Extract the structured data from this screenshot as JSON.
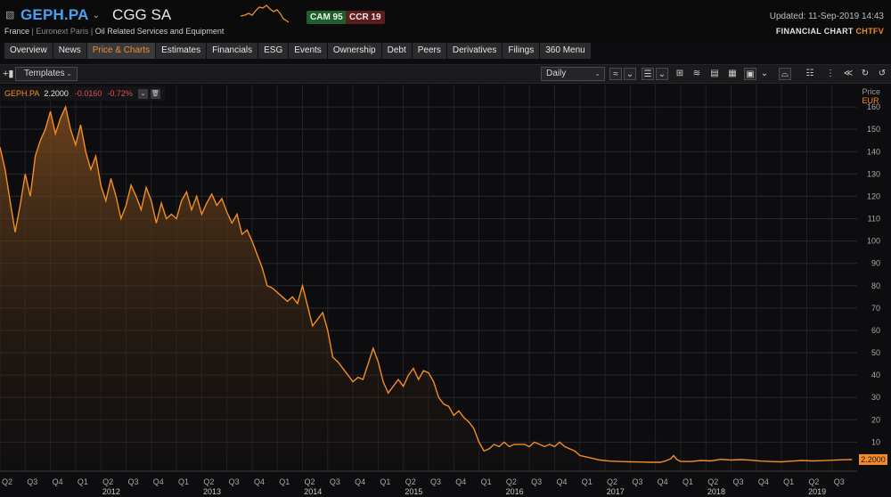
{
  "header": {
    "ric": "GEPH.PA",
    "company": "CGG SA",
    "country": "France",
    "exchange": "Euronext Paris",
    "sector": "Oil Related Services and Equipment",
    "cam_label": "CAM 95",
    "ccr_label": "CCR 19",
    "updated": "Updated: 11-Sep-2019 14:43",
    "chart_title": "FINANCIAL CHART",
    "chart_code": "CHTFV",
    "colors": {
      "ric": "#4c9ff0",
      "accent": "#f28c28",
      "cam_bg": "#1f5f2e",
      "ccr_bg": "#5a1e1e"
    }
  },
  "tabs": [
    {
      "label": "Overview",
      "active": false
    },
    {
      "label": "News",
      "active": false
    },
    {
      "label": "Price & Charts",
      "active": true
    },
    {
      "label": "Estimates",
      "active": false
    },
    {
      "label": "Financials",
      "active": false
    },
    {
      "label": "ESG",
      "active": false
    },
    {
      "label": "Events",
      "active": false
    },
    {
      "label": "Ownership",
      "active": false
    },
    {
      "label": "Debt",
      "active": false
    },
    {
      "label": "Peers",
      "active": false
    },
    {
      "label": "Derivatives",
      "active": false
    },
    {
      "label": "Filings",
      "active": false
    },
    {
      "label": "360 Menu",
      "active": false
    }
  ],
  "toolbar": {
    "templates_label": "Templates",
    "interval_label": "Daily",
    "icons": [
      "add-icon",
      "templates-dropdown",
      "interval-dropdown",
      "line-style-icon",
      "chevron-down-icon",
      "list-icon",
      "chevron-down-icon",
      "compare-icon",
      "wave-icon",
      "screen-icon",
      "save-icon",
      "export-icon",
      "chevron-down-icon",
      "chart-type-icon",
      "grid-icon",
      "layout-icon",
      "axis-icon",
      "refresh-icon",
      "history-icon"
    ]
  },
  "legend": {
    "name": "GEPH.PA",
    "price": "2.2000",
    "change": "-0.0160",
    "change_pct": "-0.72%"
  },
  "axis": {
    "price_label": "Price",
    "currency": "EUR",
    "last_label": "2.2000"
  },
  "chart_data": {
    "type": "area",
    "title": "",
    "series": [
      {
        "name": "GEPH.PA",
        "color": "#f28c28"
      }
    ],
    "y_ticks": [
      10,
      20,
      30,
      40,
      50,
      60,
      70,
      80,
      90,
      100,
      110,
      120,
      130,
      140,
      150,
      160
    ],
    "ylim": [
      -3,
      170
    ],
    "xlim": [
      2011.25,
      2019.75
    ],
    "x_quarters": [
      {
        "label": "Q2",
        "t": 2011.25
      },
      {
        "label": "Q3",
        "t": 2011.5
      },
      {
        "label": "Q4",
        "t": 2011.75
      },
      {
        "label": "Q1",
        "t": 2012.0
      },
      {
        "label": "Q2",
        "t": 2012.25
      },
      {
        "label": "Q3",
        "t": 2012.5
      },
      {
        "label": "Q4",
        "t": 2012.75
      },
      {
        "label": "Q1",
        "t": 2013.0
      },
      {
        "label": "Q2",
        "t": 2013.25
      },
      {
        "label": "Q3",
        "t": 2013.5
      },
      {
        "label": "Q4",
        "t": 2013.75
      },
      {
        "label": "Q1",
        "t": 2014.0
      },
      {
        "label": "Q2",
        "t": 2014.25
      },
      {
        "label": "Q3",
        "t": 2014.5
      },
      {
        "label": "Q4",
        "t": 2014.75
      },
      {
        "label": "Q1",
        "t": 2015.0
      },
      {
        "label": "Q2",
        "t": 2015.25
      },
      {
        "label": "Q3",
        "t": 2015.5
      },
      {
        "label": "Q4",
        "t": 2015.75
      },
      {
        "label": "Q1",
        "t": 2016.0
      },
      {
        "label": "Q2",
        "t": 2016.25
      },
      {
        "label": "Q3",
        "t": 2016.5
      },
      {
        "label": "Q4",
        "t": 2016.75
      },
      {
        "label": "Q1",
        "t": 2017.0
      },
      {
        "label": "Q2",
        "t": 2017.25
      },
      {
        "label": "Q3",
        "t": 2017.5
      },
      {
        "label": "Q4",
        "t": 2017.75
      },
      {
        "label": "Q1",
        "t": 2018.0
      },
      {
        "label": "Q2",
        "t": 2018.25
      },
      {
        "label": "Q3",
        "t": 2018.5
      },
      {
        "label": "Q4",
        "t": 2018.75
      },
      {
        "label": "Q1",
        "t": 2019.0
      },
      {
        "label": "Q2",
        "t": 2019.25
      },
      {
        "label": "Q3",
        "t": 2019.5
      }
    ],
    "x_years": [
      {
        "label": "2012",
        "t": 2012.0
      },
      {
        "label": "2013",
        "t": 2013.0
      },
      {
        "label": "2014",
        "t": 2014.0
      },
      {
        "label": "2015",
        "t": 2015.0
      },
      {
        "label": "2016",
        "t": 2016.0
      },
      {
        "label": "2017",
        "t": 2017.0
      },
      {
        "label": "2018",
        "t": 2018.0
      },
      {
        "label": "2019",
        "t": 2019.0
      }
    ],
    "points": [
      [
        2011.25,
        142
      ],
      [
        2011.3,
        132
      ],
      [
        2011.35,
        118
      ],
      [
        2011.4,
        104
      ],
      [
        2011.45,
        116
      ],
      [
        2011.5,
        130
      ],
      [
        2011.55,
        120
      ],
      [
        2011.6,
        138
      ],
      [
        2011.65,
        145
      ],
      [
        2011.7,
        150
      ],
      [
        2011.75,
        158
      ],
      [
        2011.8,
        148
      ],
      [
        2011.85,
        155
      ],
      [
        2011.9,
        160
      ],
      [
        2011.95,
        150
      ],
      [
        2012.0,
        143
      ],
      [
        2012.05,
        152
      ],
      [
        2012.1,
        140
      ],
      [
        2012.15,
        132
      ],
      [
        2012.2,
        138
      ],
      [
        2012.25,
        125
      ],
      [
        2012.3,
        118
      ],
      [
        2012.35,
        128
      ],
      [
        2012.4,
        120
      ],
      [
        2012.45,
        110
      ],
      [
        2012.5,
        116
      ],
      [
        2012.55,
        125
      ],
      [
        2012.6,
        120
      ],
      [
        2012.65,
        114
      ],
      [
        2012.7,
        124
      ],
      [
        2012.75,
        118
      ],
      [
        2012.8,
        108
      ],
      [
        2012.85,
        117
      ],
      [
        2012.9,
        110
      ],
      [
        2012.95,
        112
      ],
      [
        2013.0,
        110
      ],
      [
        2013.05,
        118
      ],
      [
        2013.1,
        122
      ],
      [
        2013.15,
        114
      ],
      [
        2013.2,
        120
      ],
      [
        2013.25,
        112
      ],
      [
        2013.3,
        117
      ],
      [
        2013.35,
        121
      ],
      [
        2013.4,
        116
      ],
      [
        2013.45,
        119
      ],
      [
        2013.5,
        113
      ],
      [
        2013.55,
        108
      ],
      [
        2013.6,
        112
      ],
      [
        2013.65,
        103
      ],
      [
        2013.7,
        105
      ],
      [
        2013.75,
        100
      ],
      [
        2013.8,
        94
      ],
      [
        2013.85,
        88
      ],
      [
        2013.9,
        80
      ],
      [
        2013.95,
        79
      ],
      [
        2014.0,
        77
      ],
      [
        2014.05,
        75
      ],
      [
        2014.1,
        73
      ],
      [
        2014.15,
        75
      ],
      [
        2014.2,
        72
      ],
      [
        2014.25,
        80
      ],
      [
        2014.3,
        71
      ],
      [
        2014.35,
        62
      ],
      [
        2014.4,
        65
      ],
      [
        2014.45,
        68
      ],
      [
        2014.5,
        60
      ],
      [
        2014.55,
        48
      ],
      [
        2014.6,
        46
      ],
      [
        2014.65,
        43
      ],
      [
        2014.7,
        40
      ],
      [
        2014.75,
        37
      ],
      [
        2014.8,
        39
      ],
      [
        2014.85,
        38
      ],
      [
        2014.9,
        45
      ],
      [
        2014.95,
        52
      ],
      [
        2015.0,
        46
      ],
      [
        2015.05,
        37
      ],
      [
        2015.1,
        32
      ],
      [
        2015.15,
        35
      ],
      [
        2015.2,
        38
      ],
      [
        2015.25,
        35
      ],
      [
        2015.3,
        40
      ],
      [
        2015.35,
        43
      ],
      [
        2015.4,
        38
      ],
      [
        2015.45,
        42
      ],
      [
        2015.5,
        41
      ],
      [
        2015.55,
        37
      ],
      [
        2015.6,
        30
      ],
      [
        2015.65,
        27
      ],
      [
        2015.7,
        26
      ],
      [
        2015.75,
        22
      ],
      [
        2015.8,
        24
      ],
      [
        2015.85,
        21
      ],
      [
        2015.9,
        19
      ],
      [
        2015.95,
        16
      ],
      [
        2016.0,
        10
      ],
      [
        2016.05,
        6
      ],
      [
        2016.1,
        7
      ],
      [
        2016.15,
        9
      ],
      [
        2016.2,
        8
      ],
      [
        2016.25,
        10
      ],
      [
        2016.3,
        8
      ],
      [
        2016.35,
        9
      ],
      [
        2016.4,
        9
      ],
      [
        2016.45,
        9
      ],
      [
        2016.5,
        8
      ],
      [
        2016.55,
        10
      ],
      [
        2016.6,
        9
      ],
      [
        2016.65,
        8
      ],
      [
        2016.7,
        9
      ],
      [
        2016.75,
        8
      ],
      [
        2016.8,
        10
      ],
      [
        2016.85,
        8
      ],
      [
        2016.9,
        7
      ],
      [
        2016.95,
        6
      ],
      [
        2017.0,
        4
      ],
      [
        2017.1,
        3
      ],
      [
        2017.2,
        2
      ],
      [
        2017.3,
        1.5
      ],
      [
        2017.4,
        1.3
      ],
      [
        2017.5,
        1.2
      ],
      [
        2017.6,
        1.1
      ],
      [
        2017.7,
        1.0
      ],
      [
        2017.8,
        1.0
      ],
      [
        2017.85,
        1.6
      ],
      [
        2017.9,
        2.5
      ],
      [
        2017.93,
        4.0
      ],
      [
        2017.96,
        2.3
      ],
      [
        2018.0,
        1.4
      ],
      [
        2018.1,
        1.3
      ],
      [
        2018.2,
        1.8
      ],
      [
        2018.3,
        1.6
      ],
      [
        2018.4,
        2.3
      ],
      [
        2018.5,
        2.0
      ],
      [
        2018.6,
        2.2
      ],
      [
        2018.7,
        1.9
      ],
      [
        2018.8,
        1.5
      ],
      [
        2018.9,
        1.3
      ],
      [
        2019.0,
        1.2
      ],
      [
        2019.1,
        1.5
      ],
      [
        2019.2,
        1.8
      ],
      [
        2019.3,
        1.6
      ],
      [
        2019.4,
        1.7
      ],
      [
        2019.5,
        1.9
      ],
      [
        2019.6,
        2.1
      ],
      [
        2019.7,
        2.2
      ]
    ],
    "last_value": 2.2
  }
}
